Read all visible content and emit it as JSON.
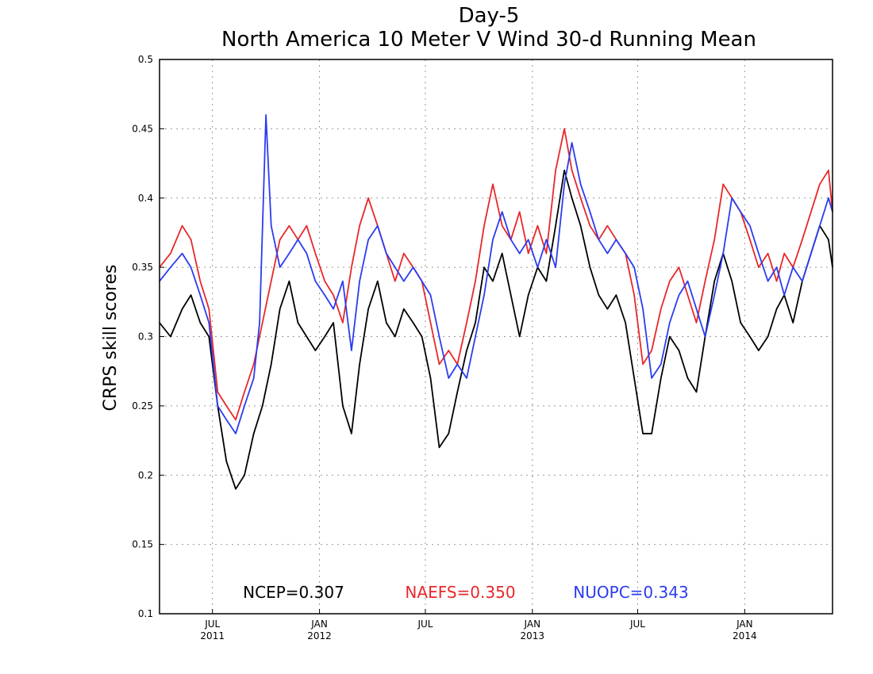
{
  "chart_data": {
    "type": "line",
    "title": "Day-5",
    "subtitle": "North America 10 Meter V Wind 30-d Running Mean",
    "ylabel": "CRPS skill scores",
    "ylim": [
      0.1,
      0.5
    ],
    "yticks": [
      "0.1",
      "0.15",
      "0.2",
      "0.25",
      "0.3",
      "0.35",
      "0.4",
      "0.45",
      "0.5"
    ],
    "xlim": [
      "2011-04-01",
      "2014-06-01"
    ],
    "grid": true,
    "xticks": [
      {
        "date": "2011-07-01",
        "month": "JUL",
        "year": "2011"
      },
      {
        "date": "2012-01-01",
        "month": "JAN",
        "year": "2012"
      },
      {
        "date": "2012-07-01",
        "month": "JUL",
        "year": ""
      },
      {
        "date": "2013-01-01",
        "month": "JAN",
        "year": "2013"
      },
      {
        "date": "2013-07-01",
        "month": "JUL",
        "year": ""
      },
      {
        "date": "2014-01-01",
        "month": "JAN",
        "year": "2014"
      }
    ],
    "series": [
      {
        "name": "NCEP",
        "color": "#000000",
        "legend": "NCEP=0.307",
        "x": [
          "2011-04-01",
          "2011-04-20",
          "2011-05-10",
          "2011-05-25",
          "2011-06-10",
          "2011-06-25",
          "2011-07-10",
          "2011-07-25",
          "2011-08-10",
          "2011-08-25",
          "2011-09-10",
          "2011-09-25",
          "2011-10-10",
          "2011-10-25",
          "2011-11-10",
          "2011-11-25",
          "2011-12-10",
          "2011-12-25",
          "2012-01-10",
          "2012-01-25",
          "2012-02-10",
          "2012-02-25",
          "2012-03-10",
          "2012-03-25",
          "2012-04-10",
          "2012-04-25",
          "2012-05-10",
          "2012-05-25",
          "2012-06-10",
          "2012-06-25",
          "2012-07-10",
          "2012-07-25",
          "2012-08-10",
          "2012-08-25",
          "2012-09-10",
          "2012-09-25",
          "2012-10-10",
          "2012-10-25",
          "2012-11-10",
          "2012-11-25",
          "2012-12-10",
          "2012-12-25",
          "2013-01-10",
          "2013-01-25",
          "2013-02-10",
          "2013-02-25",
          "2013-03-10",
          "2013-03-25",
          "2013-04-10",
          "2013-04-25",
          "2013-05-10",
          "2013-05-25",
          "2013-06-10",
          "2013-06-25",
          "2013-07-10",
          "2013-07-25",
          "2013-08-10",
          "2013-08-25",
          "2013-09-10",
          "2013-09-25",
          "2013-10-10",
          "2013-10-25",
          "2013-11-10",
          "2013-11-25",
          "2013-12-10",
          "2013-12-25",
          "2014-01-10",
          "2014-01-25",
          "2014-02-10",
          "2014-02-25",
          "2014-03-10",
          "2014-03-25",
          "2014-04-10",
          "2014-04-25",
          "2014-05-10",
          "2014-05-25",
          "2014-06-01"
        ],
        "values": [
          0.31,
          0.3,
          0.32,
          0.33,
          0.31,
          0.3,
          0.25,
          0.21,
          0.19,
          0.2,
          0.23,
          0.25,
          0.28,
          0.32,
          0.34,
          0.31,
          0.3,
          0.29,
          0.3,
          0.31,
          0.25,
          0.23,
          0.28,
          0.32,
          0.34,
          0.31,
          0.3,
          0.32,
          0.31,
          0.3,
          0.27,
          0.22,
          0.23,
          0.26,
          0.29,
          0.31,
          0.35,
          0.34,
          0.36,
          0.33,
          0.3,
          0.33,
          0.35,
          0.34,
          0.38,
          0.42,
          0.4,
          0.38,
          0.35,
          0.33,
          0.32,
          0.33,
          0.31,
          0.27,
          0.23,
          0.23,
          0.27,
          0.3,
          0.29,
          0.27,
          0.26,
          0.3,
          0.34,
          0.36,
          0.34,
          0.31,
          0.3,
          0.29,
          0.3,
          0.32,
          0.33,
          0.31,
          0.34,
          0.36,
          0.38,
          0.37,
          0.35
        ]
      },
      {
        "name": "NAEFS",
        "color": "#e8282a",
        "legend": "NAEFS=0.350",
        "x": [
          "2011-04-01",
          "2011-04-20",
          "2011-05-10",
          "2011-05-25",
          "2011-06-10",
          "2011-06-25",
          "2011-07-10",
          "2011-07-25",
          "2011-08-10",
          "2011-08-25",
          "2011-09-10",
          "2011-09-25",
          "2011-10-10",
          "2011-10-25",
          "2011-11-10",
          "2011-11-25",
          "2011-12-10",
          "2011-12-25",
          "2012-01-10",
          "2012-01-25",
          "2012-02-10",
          "2012-02-25",
          "2012-03-10",
          "2012-03-25",
          "2012-04-10",
          "2012-04-25",
          "2012-05-10",
          "2012-05-25",
          "2012-06-10",
          "2012-06-25",
          "2012-07-10",
          "2012-07-25",
          "2012-08-10",
          "2012-08-25",
          "2012-09-10",
          "2012-09-25",
          "2012-10-10",
          "2012-10-25",
          "2012-11-10",
          "2012-11-25",
          "2012-12-10",
          "2012-12-25",
          "2013-01-10",
          "2013-01-25",
          "2013-02-10",
          "2013-02-25",
          "2013-03-10",
          "2013-03-25",
          "2013-04-10",
          "2013-04-25",
          "2013-05-10",
          "2013-05-25",
          "2013-06-10",
          "2013-06-25",
          "2013-07-10",
          "2013-07-25",
          "2013-08-10",
          "2013-08-25",
          "2013-09-10",
          "2013-09-25",
          "2013-10-10",
          "2013-10-25",
          "2013-11-10",
          "2013-11-25",
          "2013-12-10",
          "2013-12-25",
          "2014-01-10",
          "2014-01-25",
          "2014-02-10",
          "2014-02-25",
          "2014-03-10",
          "2014-03-25",
          "2014-04-10",
          "2014-04-25",
          "2014-05-10",
          "2014-05-25",
          "2014-06-01"
        ],
        "values": [
          0.35,
          0.36,
          0.38,
          0.37,
          0.34,
          0.32,
          0.26,
          0.25,
          0.24,
          0.26,
          0.28,
          0.31,
          0.34,
          0.37,
          0.38,
          0.37,
          0.38,
          0.36,
          0.34,
          0.33,
          0.31,
          0.35,
          0.38,
          0.4,
          0.38,
          0.36,
          0.34,
          0.36,
          0.35,
          0.34,
          0.31,
          0.28,
          0.29,
          0.28,
          0.31,
          0.34,
          0.38,
          0.41,
          0.38,
          0.37,
          0.39,
          0.36,
          0.38,
          0.36,
          0.42,
          0.45,
          0.42,
          0.4,
          0.38,
          0.37,
          0.38,
          0.37,
          0.36,
          0.33,
          0.28,
          0.29,
          0.32,
          0.34,
          0.35,
          0.33,
          0.31,
          0.34,
          0.37,
          0.41,
          0.4,
          0.39,
          0.37,
          0.35,
          0.36,
          0.34,
          0.36,
          0.35,
          0.37,
          0.39,
          0.41,
          0.42,
          0.39
        ]
      },
      {
        "name": "NUOPC",
        "color": "#2b3cf0",
        "legend": "NUOPC=0.343",
        "x": [
          "2011-04-01",
          "2011-04-20",
          "2011-05-10",
          "2011-05-25",
          "2011-06-10",
          "2011-06-25",
          "2011-07-10",
          "2011-07-25",
          "2011-08-10",
          "2011-08-25",
          "2011-09-10",
          "2011-09-20",
          "2011-10-01",
          "2011-10-10",
          "2011-10-25",
          "2011-11-10",
          "2011-11-25",
          "2011-12-10",
          "2011-12-25",
          "2012-01-10",
          "2012-01-25",
          "2012-02-10",
          "2012-02-25",
          "2012-03-10",
          "2012-03-25",
          "2012-04-10",
          "2012-04-25",
          "2012-05-10",
          "2012-05-25",
          "2012-06-10",
          "2012-06-25",
          "2012-07-10",
          "2012-07-25",
          "2012-08-10",
          "2012-08-25",
          "2012-09-10",
          "2012-09-25",
          "2012-10-10",
          "2012-10-25",
          "2012-11-10",
          "2012-11-25",
          "2012-12-10",
          "2012-12-25",
          "2013-01-10",
          "2013-01-25",
          "2013-02-10",
          "2013-02-25",
          "2013-03-10",
          "2013-03-25",
          "2013-04-10",
          "2013-04-25",
          "2013-05-10",
          "2013-05-25",
          "2013-06-10",
          "2013-06-25",
          "2013-07-10",
          "2013-07-25",
          "2013-08-10",
          "2013-08-25",
          "2013-09-10",
          "2013-09-25",
          "2013-10-10",
          "2013-10-25",
          "2013-11-10",
          "2013-11-25",
          "2013-12-10",
          "2013-12-25",
          "2014-01-10",
          "2014-01-25",
          "2014-02-10",
          "2014-02-25",
          "2014-03-10",
          "2014-03-25",
          "2014-04-10",
          "2014-04-25",
          "2014-05-10",
          "2014-05-25",
          "2014-06-01"
        ],
        "values": [
          0.34,
          0.35,
          0.36,
          0.35,
          0.33,
          0.31,
          0.25,
          0.24,
          0.23,
          0.25,
          0.27,
          0.31,
          0.46,
          0.38,
          0.35,
          0.36,
          0.37,
          0.36,
          0.34,
          0.33,
          0.32,
          0.34,
          0.29,
          0.34,
          0.37,
          0.38,
          0.36,
          0.35,
          0.34,
          0.35,
          0.34,
          0.33,
          0.3,
          0.27,
          0.28,
          0.27,
          0.3,
          0.33,
          0.37,
          0.39,
          0.37,
          0.36,
          0.37,
          0.35,
          0.37,
          0.35,
          0.41,
          0.44,
          0.41,
          0.39,
          0.37,
          0.36,
          0.37,
          0.36,
          0.35,
          0.32,
          0.27,
          0.28,
          0.31,
          0.33,
          0.34,
          0.32,
          0.3,
          0.33,
          0.36,
          0.4,
          0.39,
          0.38,
          0.36,
          0.34,
          0.35,
          0.33,
          0.35,
          0.34,
          0.36,
          0.38,
          0.4,
          0.39
        ]
      }
    ]
  }
}
